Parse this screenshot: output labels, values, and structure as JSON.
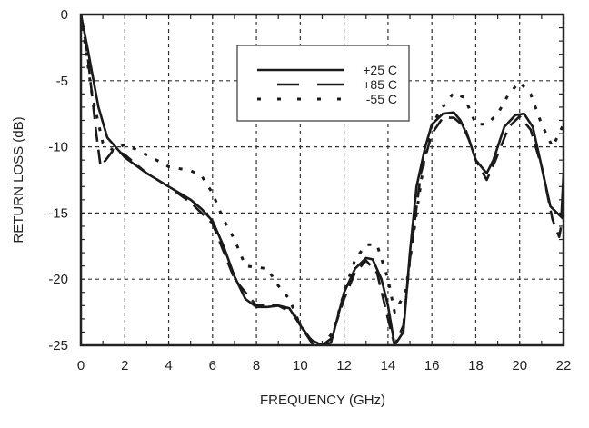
{
  "chart_data": {
    "type": "line",
    "title": "",
    "xlabel": "FREQUENCY (GHz)",
    "ylabel": "RETURN LOSS (dB)",
    "xlim": [
      0,
      22
    ],
    "ylim": [
      -25,
      0
    ],
    "xticks": [
      0,
      2,
      4,
      6,
      8,
      10,
      12,
      14,
      16,
      18,
      20,
      22
    ],
    "yticks": [
      0,
      -5,
      -10,
      -15,
      -20,
      -25
    ],
    "grid": true,
    "legend_position": "top-center",
    "series": [
      {
        "name": "+25 C",
        "style": "solid",
        "x": [
          0,
          0.3,
          0.8,
          1.2,
          2,
          3,
          4,
          5,
          5.5,
          6,
          6.5,
          7,
          7.5,
          8,
          8.5,
          9,
          9.5,
          10,
          10.5,
          11,
          11.4,
          12,
          12.5,
          13,
          13.3,
          13.7,
          14,
          14.3,
          14.7,
          15,
          15.3,
          15.7,
          16,
          16.5,
          17,
          17.3,
          17.7,
          18,
          18.5,
          18.8,
          19.3,
          19.8,
          20.2,
          20.6,
          21,
          21.4,
          21.9,
          22
        ],
        "y": [
          0,
          -2.5,
          -7,
          -9.3,
          -10.8,
          -12,
          -13,
          -14,
          -14.7,
          -15.6,
          -17.5,
          -19.8,
          -21.5,
          -22.1,
          -22.1,
          -22,
          -22.2,
          -23.5,
          -24.6,
          -25,
          -24.8,
          -21,
          -19.2,
          -18.4,
          -18.5,
          -20,
          -22,
          -25,
          -24,
          -18,
          -13,
          -10,
          -8.3,
          -7.5,
          -7.4,
          -8,
          -9.5,
          -11,
          -12,
          -11,
          -8.5,
          -7.6,
          -7.5,
          -8.5,
          -11.5,
          -14.5,
          -15.3,
          -12
        ]
      },
      {
        "name": "+85 C",
        "style": "dashed",
        "x": [
          0,
          0.3,
          0.5,
          0.7,
          0.9,
          1.5,
          2,
          3,
          4,
          5,
          6,
          7,
          8,
          9,
          9.7,
          10.2,
          10.6,
          11,
          11.4,
          12,
          12.5,
          13,
          13.5,
          14,
          14.3,
          14.7,
          15,
          15.5,
          16,
          16.5,
          17,
          17.5,
          18,
          18.5,
          18.9,
          19.5,
          20,
          20.5,
          21,
          21.5,
          21.8,
          22
        ],
        "y": [
          0,
          -3,
          -6,
          -9,
          -11.5,
          -10.2,
          -10.6,
          -12,
          -13,
          -14.2,
          -15.8,
          -20,
          -22,
          -22,
          -22.6,
          -24,
          -25,
          -25,
          -24.5,
          -21.5,
          -19.5,
          -18.6,
          -19.5,
          -23,
          -25,
          -23.5,
          -18.5,
          -12,
          -9,
          -7.8,
          -7.8,
          -8.5,
          -11,
          -12.5,
          -11,
          -8.5,
          -7.7,
          -8.7,
          -11.5,
          -15.5,
          -16.8,
          -15
        ]
      },
      {
        "name": "-55 C",
        "style": "dotted",
        "x": [
          0,
          0.5,
          1,
          1.5,
          2,
          3,
          4,
          5,
          5.5,
          6,
          6.5,
          7,
          7.5,
          8.5,
          9,
          9.5,
          10,
          10.5,
          11,
          11.5,
          12,
          12.5,
          13,
          13.5,
          14,
          14.3,
          14.8,
          15.3,
          15.7,
          16,
          16.5,
          17,
          17.5,
          18,
          18.5,
          19,
          19.5,
          20,
          20.5,
          21,
          21.5,
          22
        ],
        "y": [
          0,
          -6,
          -9.7,
          -10.3,
          -9.8,
          -10.6,
          -11.5,
          -11.8,
          -12.2,
          -13.5,
          -15.5,
          -17,
          -19,
          -19.2,
          -20.5,
          -21.5,
          -23.5,
          -24.6,
          -25,
          -24,
          -21,
          -18.5,
          -17.4,
          -17.4,
          -20,
          -22.5,
          -21,
          -15,
          -10.5,
          -8.3,
          -7,
          -5.9,
          -6.3,
          -8.3,
          -8.3,
          -7.5,
          -6,
          -5.1,
          -6,
          -8.3,
          -10,
          -8.3
        ]
      }
    ]
  }
}
